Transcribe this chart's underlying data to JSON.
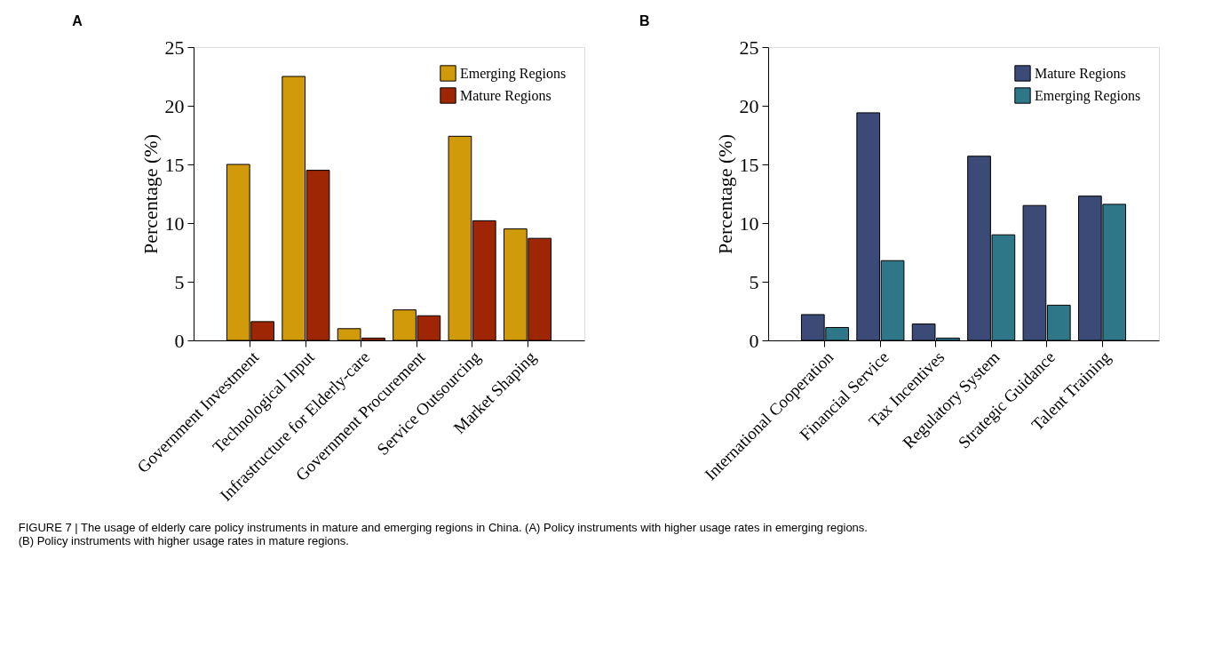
{
  "chart_data": [
    {
      "type": "bar",
      "title": "A",
      "ylabel": "Percentage (%)",
      "categories": [
        "Government Investment",
        "Technological Input",
        "Infrastructure for Elderly-care",
        "Government Procurement",
        "Service Outsourcing",
        "Market Shaping"
      ],
      "series": [
        {
          "name": "Emerging Regions",
          "color": "#d09a0a",
          "values": [
            15.0,
            22.5,
            1.0,
            2.6,
            17.4,
            9.5
          ]
        },
        {
          "name": "Mature Regions",
          "color": "#9e2604",
          "values": [
            1.6,
            14.5,
            0.2,
            2.1,
            10.2,
            8.7
          ]
        }
      ],
      "ylim": [
        0,
        25
      ],
      "yticks": [
        0,
        5,
        10,
        15,
        20,
        25
      ],
      "grid": false,
      "legend": "top right",
      "annotations": [
        "FIGURE 7 | The usage of elderly care policy instruments in mature and emerging regions in China. (A) Policy instruments with higher usage rates in emerging regions.",
        "(B) Policy instruments with higher usage rates in mature regions."
      ]
    },
    {
      "type": "bar",
      "title": "B",
      "ylabel": "Percentage (%)",
      "categories": [
        "International Cooperation",
        "Financial Service",
        "Tax Incentives",
        "Regulatory System",
        "Strategic Guidance",
        "Talent Training"
      ],
      "series": [
        {
          "name": "Mature Regions",
          "color": "#3b4a76",
          "values": [
            2.2,
            19.4,
            1.4,
            15.7,
            11.5,
            12.3
          ]
        },
        {
          "name": "Emerging Regions",
          "color": "#2e7789",
          "values": [
            1.1,
            6.8,
            0.2,
            9.0,
            3.0,
            11.6
          ]
        }
      ],
      "ylim": [
        0,
        25
      ],
      "yticks": [
        0,
        5,
        10,
        15,
        20,
        25
      ],
      "grid": false,
      "legend": "top right"
    }
  ]
}
